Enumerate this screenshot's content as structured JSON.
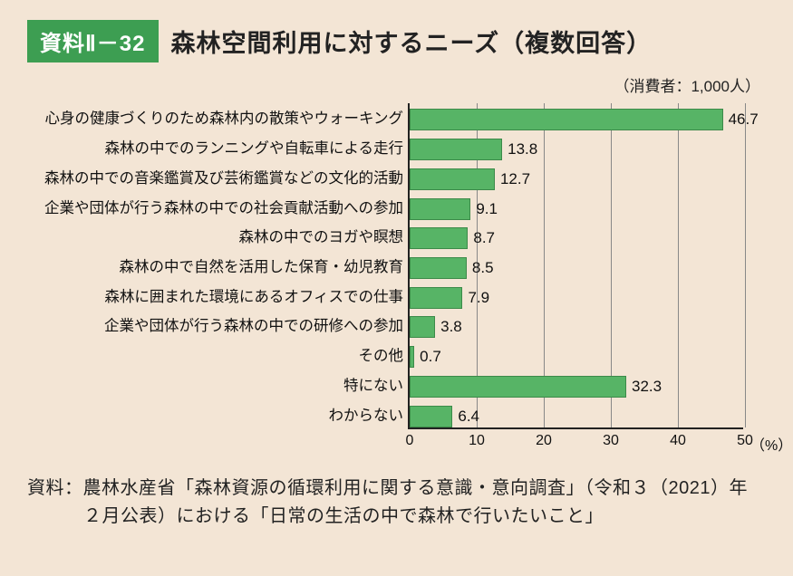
{
  "badge": "資料Ⅱ－32",
  "title": "森林空間利用に対するニーズ（複数回答）",
  "subtitle": "（消費者：1,000人）",
  "chart": {
    "type": "bar-horizontal",
    "x_axis": {
      "min": 0,
      "max": 50,
      "tick_step": 10,
      "ticks": [
        "0",
        "10",
        "20",
        "30",
        "40",
        "50"
      ],
      "unit": "（%）"
    },
    "bar_color": "#57b466",
    "bar_border_color": "#3c8a49",
    "background_color": "#f3e5d5",
    "axis_color": "#222222",
    "grid_color": "#888888",
    "label_fontsize": 16.5,
    "value_fontsize": 17,
    "items": [
      {
        "label": "心身の健康づくりのため森林内の散策やウォーキング",
        "value": 46.7
      },
      {
        "label": "森林の中でのランニングや自転車による走行",
        "value": 13.8
      },
      {
        "label": "森林の中での音楽鑑賞及び芸術鑑賞などの文化的活動",
        "value": 12.7
      },
      {
        "label": "企業や団体が行う森林の中での社会貢献活動への参加",
        "value": 9.1
      },
      {
        "label": "森林の中でのヨガや瞑想",
        "value": 8.7
      },
      {
        "label": "森林の中で自然を活用した保育・幼児教育",
        "value": 8.5
      },
      {
        "label": "森林に囲まれた環境にあるオフィスでの仕事",
        "value": 7.9
      },
      {
        "label": "企業や団体が行う森林の中での研修への参加",
        "value": 3.8
      },
      {
        "label": "その他",
        "value": 0.7
      },
      {
        "label": "特にない",
        "value": 32.3
      },
      {
        "label": "わからない",
        "value": 6.4
      }
    ]
  },
  "source": "資料：農林水産省「森林資源の循環利用に関する意識・意向調査」（令和３（2021）年２月公表）における「日常の生活の中で森林で行いたいこと」"
}
